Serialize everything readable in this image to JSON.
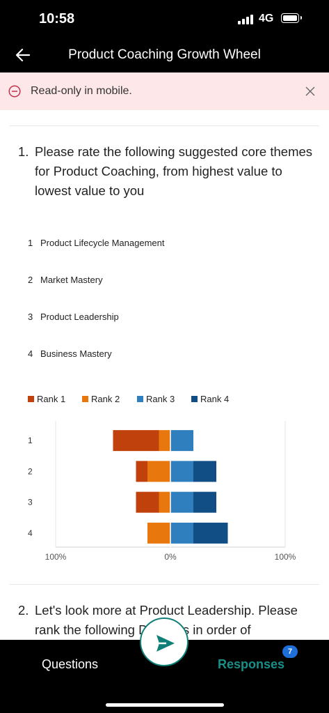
{
  "status_bar": {
    "time": "10:58",
    "network": "4G"
  },
  "nav": {
    "title": "Product Coaching Growth Wheel",
    "back_icon": "arrow-left-icon"
  },
  "banner": {
    "text": "Read-only in mobile.",
    "icon": "minus-circle-icon",
    "close_icon": "close-icon"
  },
  "question1": {
    "number": "1.",
    "text": "Please rate the following suggested core themes for Product Coaching, from highest value to lowest value to you",
    "ranked_items": [
      {
        "index": "1",
        "label": "Product Lifecycle Management"
      },
      {
        "index": "2",
        "label": "Market Mastery"
      },
      {
        "index": "3",
        "label": "Product Leadership"
      },
      {
        "index": "4",
        "label": "Business Mastery"
      }
    ]
  },
  "chart_data": {
    "type": "bar",
    "orientation": "horizontal-diverging",
    "categories": [
      "1",
      "2",
      "3",
      "4"
    ],
    "series": [
      {
        "name": "Rank 1",
        "color": "#c0410c",
        "values": [
          40,
          10,
          20,
          0
        ]
      },
      {
        "name": "Rank 2",
        "color": "#e8780d",
        "values": [
          10,
          20,
          10,
          20
        ]
      },
      {
        "name": "Rank 3",
        "color": "#2f7fbf",
        "values": [
          20,
          20,
          20,
          20
        ]
      },
      {
        "name": "Rank 4",
        "color": "#114e86",
        "values": [
          0,
          20,
          20,
          30
        ]
      }
    ],
    "negative_series": [
      "Rank 1",
      "Rank 2"
    ],
    "positive_series": [
      "Rank 3",
      "Rank 4"
    ],
    "xlim": [
      -100,
      100
    ],
    "x_ticks": [
      "100%",
      "0%",
      "100%"
    ],
    "grid": false,
    "legend_position": "top-left"
  },
  "question2": {
    "number": "2.",
    "text": "Let's look more at Product Leadership. Please rank the following Domains in order of"
  },
  "bottom_bar": {
    "questions_label": "Questions",
    "responses_label": "Responses",
    "responses_badge": "7",
    "send_icon": "send-icon"
  }
}
